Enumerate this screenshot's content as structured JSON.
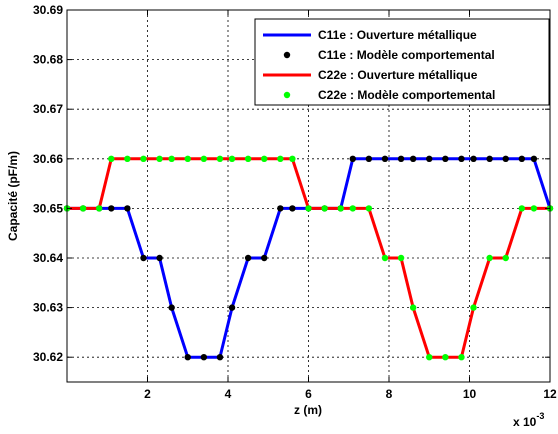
{
  "chart_data": {
    "type": "line",
    "xlabel": "z (m)",
    "ylabel": "Capacité (pF/m)",
    "x_multiplier_label": "x 10",
    "x_multiplier_exponent": "-3",
    "xlim": [
      0.0,
      0.012
    ],
    "ylim": [
      30.615,
      30.69
    ],
    "x_ticks": [
      0.002,
      0.004,
      0.006,
      0.008,
      0.01,
      0.012
    ],
    "x_tick_labels": [
      "2",
      "4",
      "6",
      "8",
      "10",
      "12"
    ],
    "y_ticks": [
      30.62,
      30.63,
      30.64,
      30.65,
      30.66,
      30.67,
      30.68,
      30.69
    ],
    "y_tick_labels": [
      "30.62",
      "30.63",
      "30.64",
      "30.65",
      "30.66",
      "30.67",
      "30.68",
      "30.69"
    ],
    "grid": true,
    "legend_position": "top-right",
    "series": [
      {
        "name": "C11e : Ouverture métallique",
        "style": "line",
        "color": "#0000ff",
        "x": [
          0.0,
          0.0004,
          0.0008,
          0.0011,
          0.0015,
          0.0019,
          0.0023,
          0.0026,
          0.003,
          0.0034,
          0.0038,
          0.0041,
          0.0045,
          0.0049,
          0.0053,
          0.0056,
          0.006,
          0.0064,
          0.0068,
          0.0071,
          0.0075,
          0.0079,
          0.0083,
          0.0086,
          0.009,
          0.0094,
          0.0098,
          0.0101,
          0.0105,
          0.0109,
          0.0113,
          0.0116,
          0.012
        ],
        "y": [
          30.65,
          30.65,
          30.65,
          30.65,
          30.65,
          30.64,
          30.64,
          30.63,
          30.62,
          30.62,
          30.62,
          30.63,
          30.64,
          30.64,
          30.65,
          30.65,
          30.65,
          30.65,
          30.65,
          30.66,
          30.66,
          30.66,
          30.66,
          30.66,
          30.66,
          30.66,
          30.66,
          30.66,
          30.66,
          30.66,
          30.66,
          30.66,
          30.65
        ]
      },
      {
        "name": "C11e : Modèle comportemental",
        "style": "markers",
        "color": "#000000",
        "x": [
          0.0,
          0.0004,
          0.0008,
          0.0011,
          0.0015,
          0.0019,
          0.0023,
          0.0026,
          0.003,
          0.0034,
          0.0038,
          0.0041,
          0.0045,
          0.0049,
          0.0053,
          0.0056,
          0.006,
          0.0064,
          0.0068,
          0.0071,
          0.0075,
          0.0079,
          0.0083,
          0.0086,
          0.009,
          0.0094,
          0.0098,
          0.0101,
          0.0105,
          0.0109,
          0.0113,
          0.0116,
          0.012
        ],
        "y": [
          30.65,
          30.65,
          30.65,
          30.65,
          30.65,
          30.64,
          30.64,
          30.63,
          30.62,
          30.62,
          30.62,
          30.63,
          30.64,
          30.64,
          30.65,
          30.65,
          30.65,
          30.65,
          30.65,
          30.66,
          30.66,
          30.66,
          30.66,
          30.66,
          30.66,
          30.66,
          30.66,
          30.66,
          30.66,
          30.66,
          30.66,
          30.66,
          30.65
        ]
      },
      {
        "name": "C22e : Ouverture métallique",
        "style": "line",
        "color": "#ff0000",
        "x": [
          0.0,
          0.0004,
          0.0008,
          0.0011,
          0.0015,
          0.0019,
          0.0023,
          0.0026,
          0.003,
          0.0034,
          0.0038,
          0.0041,
          0.0045,
          0.0049,
          0.0053,
          0.0056,
          0.006,
          0.0064,
          0.0068,
          0.0071,
          0.0075,
          0.0079,
          0.0083,
          0.0086,
          0.009,
          0.0094,
          0.0098,
          0.0101,
          0.0105,
          0.0109,
          0.0113,
          0.0116,
          0.012
        ],
        "y": [
          30.65,
          30.65,
          30.65,
          30.66,
          30.66,
          30.66,
          30.66,
          30.66,
          30.66,
          30.66,
          30.66,
          30.66,
          30.66,
          30.66,
          30.66,
          30.66,
          30.65,
          30.65,
          30.65,
          30.65,
          30.65,
          30.64,
          30.64,
          30.63,
          30.62,
          30.62,
          30.62,
          30.63,
          30.64,
          30.64,
          30.65,
          30.65,
          30.65
        ]
      },
      {
        "name": "C22e : Modèle comportemental",
        "style": "markers",
        "color": "#00ff00",
        "x": [
          0.0,
          0.0004,
          0.0008,
          0.0011,
          0.0015,
          0.0019,
          0.0023,
          0.0026,
          0.003,
          0.0034,
          0.0038,
          0.0041,
          0.0045,
          0.0049,
          0.0053,
          0.0056,
          0.006,
          0.0064,
          0.0068,
          0.0071,
          0.0075,
          0.0079,
          0.0083,
          0.0086,
          0.009,
          0.0094,
          0.0098,
          0.0101,
          0.0105,
          0.0109,
          0.0113,
          0.0116,
          0.012
        ],
        "y": [
          30.65,
          30.65,
          30.65,
          30.66,
          30.66,
          30.66,
          30.66,
          30.66,
          30.66,
          30.66,
          30.66,
          30.66,
          30.66,
          30.66,
          30.66,
          30.66,
          30.65,
          30.65,
          30.65,
          30.65,
          30.65,
          30.64,
          30.64,
          30.63,
          30.62,
          30.62,
          30.62,
          30.63,
          30.64,
          30.64,
          30.65,
          30.65,
          30.65
        ]
      }
    ]
  }
}
